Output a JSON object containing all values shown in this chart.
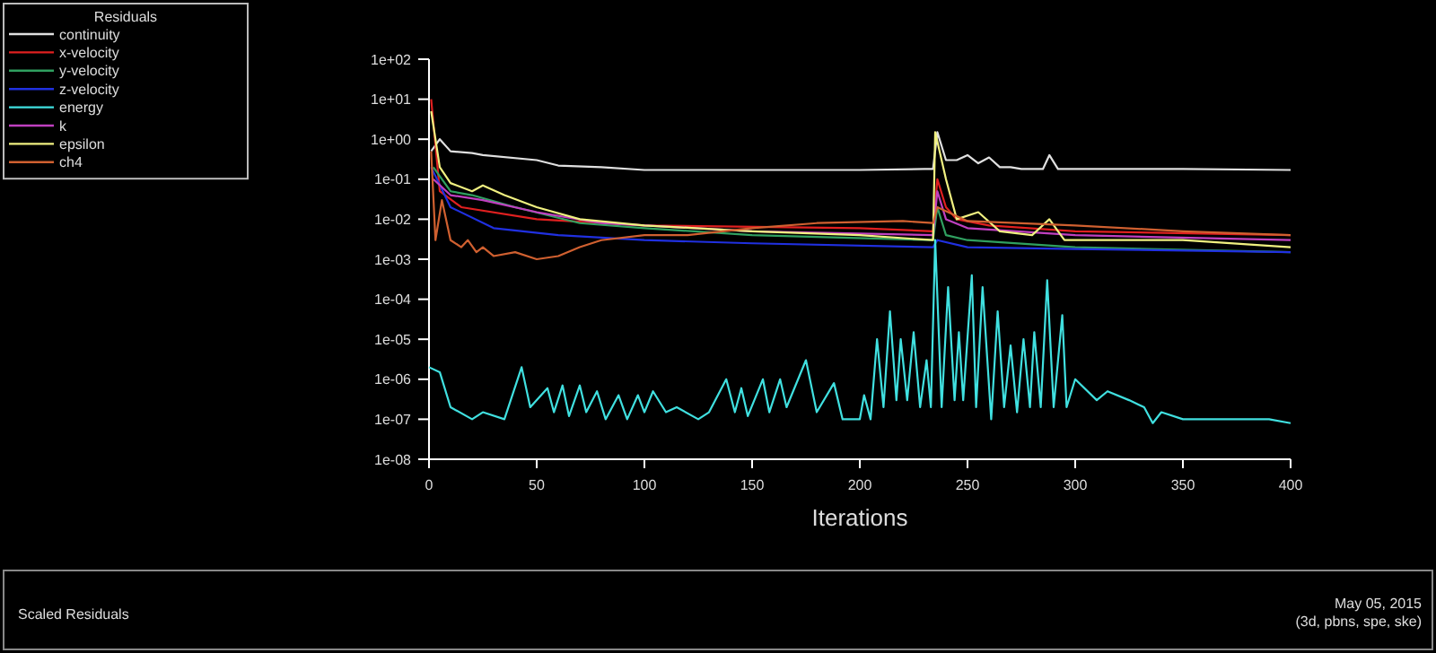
{
  "chart_data": {
    "type": "line",
    "title": "Scaled Residuals",
    "xlabel": "Iterations",
    "legend_title": "Residuals",
    "legend": "top left",
    "log": "y",
    "grid": false,
    "marker": "none",
    "line_style": "solid",
    "xlim": [
      0,
      400
    ],
    "xticks": [
      0,
      50,
      100,
      150,
      200,
      250,
      300,
      350,
      400
    ],
    "ylim": [
      1e-08,
      100
    ],
    "yticks": [
      {
        "value": 1e-08,
        "label": "1e-08"
      },
      {
        "value": 1e-07,
        "label": "1e-07"
      },
      {
        "value": 1e-06,
        "label": "1e-06"
      },
      {
        "value": 1e-05,
        "label": "1e-05"
      },
      {
        "value": 0.0001,
        "label": "1e-04"
      },
      {
        "value": 0.001,
        "label": "1e-03"
      },
      {
        "value": 0.01,
        "label": "1e-02"
      },
      {
        "value": 0.1,
        "label": "1e-01"
      },
      {
        "value": 1,
        "label": "1e+00"
      },
      {
        "value": 10,
        "label": "1e+01"
      },
      {
        "value": 100,
        "label": "1e+02"
      }
    ],
    "annotations": [
      "May 05, 2015",
      "(3d, pbns, spe, ske)"
    ],
    "series": [
      {
        "name": "continuity",
        "color": "#e0e0e0",
        "x": [
          1,
          5,
          10,
          20,
          25,
          50,
          60,
          80,
          100,
          150,
          200,
          230,
          234,
          236,
          240,
          245,
          250,
          255,
          260,
          265,
          270,
          275,
          285,
          288,
          292,
          300,
          350,
          400
        ],
        "values": [
          0.5,
          1,
          0.5,
          0.45,
          0.4,
          0.3,
          0.22,
          0.2,
          0.17,
          0.17,
          0.17,
          0.18,
          0.18,
          1.5,
          0.3,
          0.3,
          0.4,
          0.25,
          0.35,
          0.2,
          0.2,
          0.18,
          0.18,
          0.4,
          0.18,
          0.18,
          0.18,
          0.17
        ]
      },
      {
        "name": "x-velocity",
        "color": "#e02020",
        "x": [
          1,
          5,
          15,
          50,
          100,
          200,
          234,
          236,
          240,
          245,
          260,
          300,
          400
        ],
        "values": [
          10,
          0.05,
          0.02,
          0.01,
          0.007,
          0.006,
          0.005,
          0.1,
          0.02,
          0.01,
          0.007,
          0.005,
          0.004
        ]
      },
      {
        "name": "y-velocity",
        "color": "#30a060",
        "x": [
          2,
          10,
          20,
          40,
          70,
          100,
          150,
          234,
          236,
          240,
          250,
          300,
          400
        ],
        "values": [
          0.2,
          0.05,
          0.04,
          0.02,
          0.008,
          0.006,
          0.004,
          0.003,
          0.02,
          0.004,
          0.003,
          0.002,
          0.0015
        ]
      },
      {
        "name": "z-velocity",
        "color": "#2030e0",
        "x": [
          1,
          10,
          30,
          60,
          100,
          150,
          234,
          236,
          250,
          300,
          400
        ],
        "values": [
          0.2,
          0.02,
          0.006,
          0.004,
          0.003,
          0.0025,
          0.002,
          0.003,
          0.002,
          0.0018,
          0.0015
        ]
      },
      {
        "name": "energy",
        "color": "#40e0e0",
        "x": [
          0,
          5,
          10,
          20,
          25,
          35,
          43,
          47,
          55,
          58,
          62,
          65,
          70,
          73,
          78,
          82,
          88,
          92,
          97,
          100,
          104,
          110,
          115,
          125,
          130,
          138,
          142,
          145,
          148,
          155,
          158,
          163,
          166,
          175,
          180,
          188,
          192,
          200,
          202,
          205,
          208,
          211,
          214,
          217,
          219,
          222,
          225,
          228,
          231,
          233,
          235,
          238,
          241,
          244,
          246,
          248,
          252,
          254,
          257,
          261,
          264,
          267,
          270,
          273,
          276,
          279,
          281,
          284,
          287,
          290,
          294,
          296,
          300,
          310,
          315,
          325,
          332,
          336,
          340,
          350,
          370,
          390,
          400
        ],
        "values": [
          2e-06,
          1.5e-06,
          2e-07,
          1e-07,
          1.5e-07,
          1e-07,
          2e-06,
          2e-07,
          6e-07,
          1.5e-07,
          7e-07,
          1.2e-07,
          7e-07,
          1.5e-07,
          5e-07,
          1e-07,
          4e-07,
          1e-07,
          4e-07,
          1.5e-07,
          5e-07,
          1.5e-07,
          2e-07,
          1e-07,
          1.5e-07,
          1e-06,
          1.5e-07,
          6e-07,
          1.2e-07,
          1e-06,
          1.5e-07,
          1e-06,
          2e-07,
          3e-06,
          1.5e-07,
          8e-07,
          1e-07,
          1e-07,
          4e-07,
          1e-07,
          1e-05,
          2e-07,
          5e-05,
          3e-07,
          1e-05,
          3e-07,
          1.5e-05,
          2e-07,
          3e-06,
          2e-07,
          0.003,
          2e-07,
          0.0002,
          3e-07,
          1.5e-05,
          3e-07,
          0.0004,
          2e-07,
          0.0002,
          1e-07,
          5e-05,
          2e-07,
          7e-06,
          1.5e-07,
          1e-05,
          2e-07,
          1.5e-05,
          2e-07,
          0.0003,
          2e-07,
          4e-05,
          2e-07,
          1e-06,
          3e-07,
          5e-07,
          3e-07,
          2e-07,
          8e-08,
          1.5e-07,
          1e-07,
          1e-07,
          1e-07,
          8e-08
        ]
      },
      {
        "name": "k",
        "color": "#c040c0",
        "x": [
          2,
          10,
          25,
          50,
          80,
          150,
          234,
          236,
          240,
          250,
          300,
          400
        ],
        "values": [
          0.1,
          0.04,
          0.03,
          0.015,
          0.008,
          0.005,
          0.004,
          0.05,
          0.01,
          0.006,
          0.004,
          0.003
        ]
      },
      {
        "name": "epsilon",
        "color": "#f0f080",
        "x": [
          1,
          5,
          10,
          20,
          25,
          35,
          50,
          70,
          100,
          150,
          200,
          234,
          235,
          240,
          245,
          255,
          265,
          280,
          288,
          295,
          350,
          400
        ],
        "values": [
          5,
          0.2,
          0.08,
          0.05,
          0.07,
          0.04,
          0.02,
          0.01,
          0.007,
          0.005,
          0.004,
          0.003,
          1.5,
          0.1,
          0.01,
          0.015,
          0.005,
          0.004,
          0.01,
          0.003,
          0.003,
          0.002
        ]
      },
      {
        "name": "ch4",
        "color": "#d06030",
        "x": [
          1,
          3,
          6,
          10,
          15,
          18,
          22,
          25,
          30,
          40,
          50,
          60,
          70,
          80,
          100,
          120,
          150,
          180,
          220,
          234,
          236,
          250,
          300,
          350,
          400
        ],
        "values": [
          0.5,
          0.003,
          0.03,
          0.003,
          0.002,
          0.003,
          0.0015,
          0.002,
          0.0012,
          0.0015,
          0.001,
          0.0012,
          0.002,
          0.003,
          0.004,
          0.004,
          0.006,
          0.008,
          0.009,
          0.008,
          0.02,
          0.009,
          0.007,
          0.005,
          0.004
        ]
      }
    ]
  }
}
